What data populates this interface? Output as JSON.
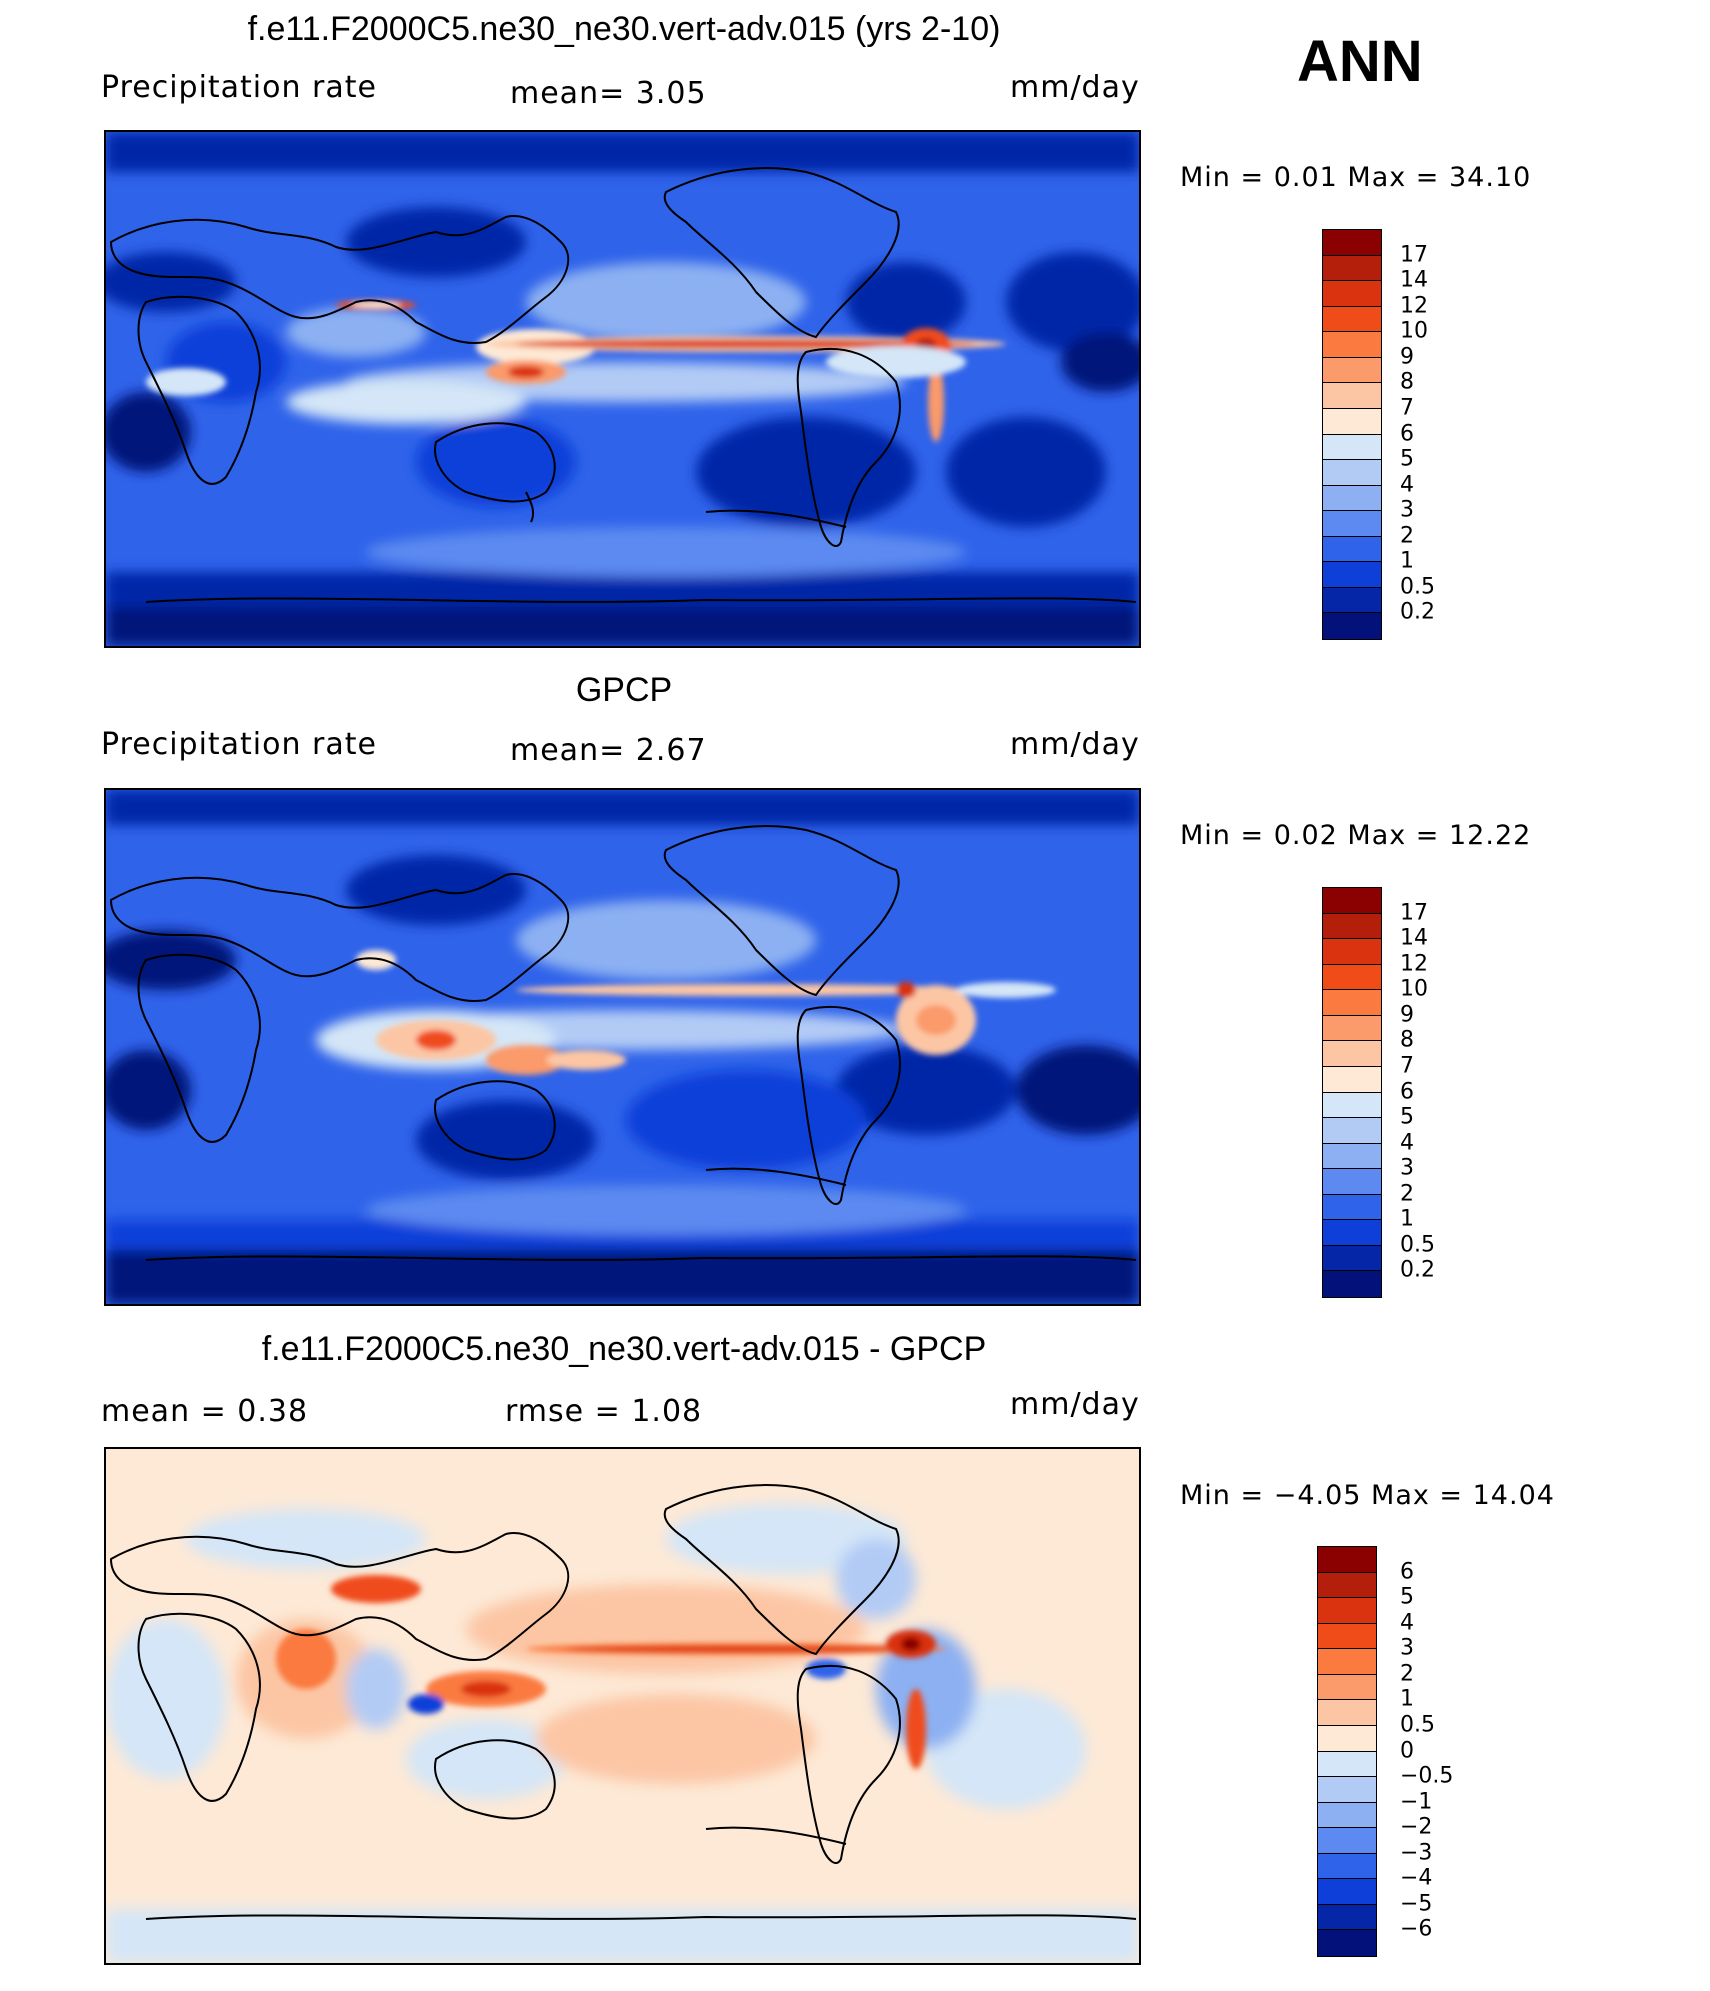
{
  "season": "ANN",
  "panels": [
    {
      "title": "f.e11.F2000C5.ne30_ne30.vert-adv.015 (yrs 2-10)",
      "left_label": "Precipitation  rate",
      "mid_label": "mean=    3.05",
      "units": "mm/day",
      "minmax": "Min  =      0.01  Max  =    34.10",
      "colorbar": {
        "labels": [
          "17",
          "14",
          "12",
          "10",
          "9",
          "8",
          "7",
          "6",
          "5",
          "4",
          "3",
          "2",
          "1",
          "0.5",
          "0.2"
        ],
        "colors": [
          "#8b0000",
          "#b31f0a",
          "#d9330f",
          "#f04c1a",
          "#fa7a40",
          "#fb9a6a",
          "#fcc6a4",
          "#fde9d6",
          "#d4e6f7",
          "#b2cbf5",
          "#8cb0f2",
          "#5c8af0",
          "#2f63ea",
          "#0f3fd9",
          "#0626a8",
          "#03127a"
        ]
      }
    },
    {
      "title": "GPCP",
      "left_label": "Precipitation  rate",
      "mid_label": "mean=    2.67",
      "units": "mm/day",
      "minmax": "Min  =      0.02  Max  =    12.22",
      "colorbar": {
        "labels": [
          "17",
          "14",
          "12",
          "10",
          "9",
          "8",
          "7",
          "6",
          "5",
          "4",
          "3",
          "2",
          "1",
          "0.5",
          "0.2"
        ],
        "colors": [
          "#8b0000",
          "#b31f0a",
          "#d9330f",
          "#f04c1a",
          "#fa7a40",
          "#fb9a6a",
          "#fcc6a4",
          "#fde9d6",
          "#d4e6f7",
          "#b2cbf5",
          "#8cb0f2",
          "#5c8af0",
          "#2f63ea",
          "#0f3fd9",
          "#0626a8",
          "#03127a"
        ]
      }
    },
    {
      "title": "f.e11.F2000C5.ne30_ne30.vert-adv.015 - GPCP",
      "left_label": "mean  =     0.38",
      "mid_label": "rmse  =     1.08",
      "units": "mm/day",
      "minmax": "Min  =    −4.05  Max  =     14.04",
      "colorbar": {
        "labels": [
          "6",
          "5",
          "4",
          "3",
          "2",
          "1",
          "0.5",
          "0",
          "−0.5",
          "−1",
          "−2",
          "−3",
          "−4",
          "−5",
          "−6"
        ],
        "colors": [
          "#8b0000",
          "#b31f0a",
          "#d9330f",
          "#f04c1a",
          "#fa7a40",
          "#fb9a6a",
          "#fcc6a4",
          "#fde9d6",
          "#d4e6f7",
          "#b2cbf5",
          "#8cb0f2",
          "#5c8af0",
          "#2f63ea",
          "#0f3fd9",
          "#0626a8",
          "#03127a"
        ]
      }
    }
  ]
}
